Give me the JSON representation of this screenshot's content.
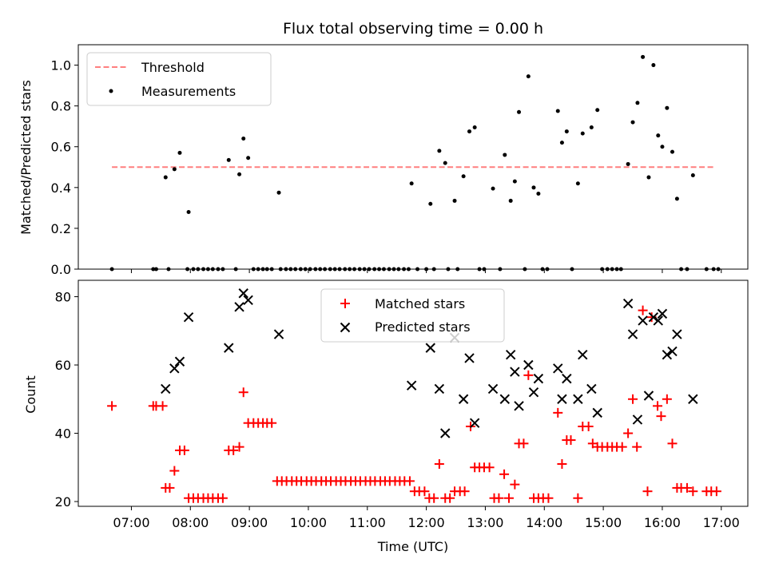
{
  "chart_data": [
    {
      "type": "scatter",
      "title": "Flux total observing time = 0.00 h",
      "xlabel": "",
      "ylabel": "Matched/Predicted stars",
      "xlim": [
        6.1,
        17.45
      ],
      "ylim": [
        0,
        1.1
      ],
      "yticks": [
        "0.0",
        "0.2",
        "0.4",
        "0.6",
        "0.8",
        "1.0"
      ],
      "legend": {
        "placement": "upper-left",
        "threshold_label": "Threshold",
        "measurements_label": "Measurements"
      },
      "threshold": {
        "name": "Threshold",
        "value": 0.5,
        "x_range": [
          6.67,
          16.87
        ],
        "color": "#ff7f7f",
        "style": "dashed"
      },
      "measurements": {
        "name": "Measurements",
        "color": "#000000",
        "points": [
          [
            6.67,
            0
          ],
          [
            7.37,
            0
          ],
          [
            7.42,
            0
          ],
          [
            7.58,
            0.45
          ],
          [
            7.63,
            0
          ],
          [
            7.73,
            0.49
          ],
          [
            7.82,
            0.57
          ],
          [
            7.97,
            0.28
          ],
          [
            7.95,
            0
          ],
          [
            8.05,
            0
          ],
          [
            8.13,
            0
          ],
          [
            8.22,
            0
          ],
          [
            8.3,
            0
          ],
          [
            8.38,
            0
          ],
          [
            8.47,
            0
          ],
          [
            8.55,
            0
          ],
          [
            8.65,
            0.535
          ],
          [
            8.77,
            0
          ],
          [
            8.83,
            0.465
          ],
          [
            8.9,
            0.64
          ],
          [
            8.98,
            0.545
          ],
          [
            9.07,
            0
          ],
          [
            9.15,
            0
          ],
          [
            9.23,
            0
          ],
          [
            9.3,
            0
          ],
          [
            9.38,
            0
          ],
          [
            9.5,
            0.375
          ],
          [
            9.53,
            0
          ],
          [
            9.62,
            0
          ],
          [
            9.7,
            0
          ],
          [
            9.78,
            0
          ],
          [
            9.87,
            0
          ],
          [
            9.95,
            0
          ],
          [
            10.03,
            0
          ],
          [
            10.12,
            0
          ],
          [
            10.2,
            0
          ],
          [
            10.28,
            0
          ],
          [
            10.37,
            0
          ],
          [
            10.45,
            0
          ],
          [
            10.53,
            0
          ],
          [
            10.62,
            0
          ],
          [
            10.7,
            0
          ],
          [
            10.78,
            0
          ],
          [
            10.87,
            0
          ],
          [
            10.95,
            0
          ],
          [
            11.03,
            0
          ],
          [
            11.12,
            0
          ],
          [
            11.2,
            0
          ],
          [
            11.28,
            0
          ],
          [
            11.37,
            0
          ],
          [
            11.45,
            0
          ],
          [
            11.53,
            0
          ],
          [
            11.62,
            0
          ],
          [
            11.7,
            0
          ],
          [
            11.75,
            0.42
          ],
          [
            11.85,
            0
          ],
          [
            12.0,
            0
          ],
          [
            12.07,
            0.32
          ],
          [
            12.13,
            0
          ],
          [
            12.22,
            0.58
          ],
          [
            12.32,
            0.52
          ],
          [
            12.37,
            0
          ],
          [
            12.48,
            0.335
          ],
          [
            12.53,
            0
          ],
          [
            12.63,
            0.455
          ],
          [
            12.73,
            0.675
          ],
          [
            12.82,
            0.695
          ],
          [
            12.9,
            0
          ],
          [
            12.98,
            0
          ],
          [
            13.13,
            0.395
          ],
          [
            13.25,
            0
          ],
          [
            13.33,
            0.56
          ],
          [
            13.43,
            0.335
          ],
          [
            13.5,
            0.43
          ],
          [
            13.57,
            0.77
          ],
          [
            13.67,
            0
          ],
          [
            13.73,
            0.945
          ],
          [
            13.82,
            0.4
          ],
          [
            13.9,
            0.37
          ],
          [
            13.97,
            0
          ],
          [
            14.05,
            0
          ],
          [
            14.23,
            0.775
          ],
          [
            14.3,
            0.62
          ],
          [
            14.38,
            0.675
          ],
          [
            14.47,
            0
          ],
          [
            14.57,
            0.42
          ],
          [
            14.65,
            0.665
          ],
          [
            14.8,
            0.695
          ],
          [
            14.9,
            0.78
          ],
          [
            14.98,
            0
          ],
          [
            15.07,
            0
          ],
          [
            15.15,
            0
          ],
          [
            15.23,
            0
          ],
          [
            15.3,
            0
          ],
          [
            15.42,
            0.515
          ],
          [
            15.5,
            0.72
          ],
          [
            15.58,
            0.815
          ],
          [
            15.67,
            1.04
          ],
          [
            15.77,
            0.45
          ],
          [
            15.85,
            1.0
          ],
          [
            15.93,
            0.655
          ],
          [
            16.0,
            0.6
          ],
          [
            16.08,
            0.79
          ],
          [
            16.17,
            0.575
          ],
          [
            16.25,
            0.345
          ],
          [
            16.32,
            0
          ],
          [
            16.42,
            0
          ],
          [
            16.52,
            0.46
          ],
          [
            16.75,
            0
          ],
          [
            16.87,
            0
          ],
          [
            16.95,
            0
          ]
        ]
      }
    },
    {
      "type": "scatter",
      "title": "",
      "xlabel": "Time (UTC)",
      "ylabel": "Count",
      "xlim": [
        6.1,
        17.45
      ],
      "ylim": [
        18.6,
        84.8
      ],
      "yticks": [
        "20",
        "40",
        "60",
        "80"
      ],
      "xticks": [
        {
          "v": 7,
          "label": "07:00"
        },
        {
          "v": 8,
          "label": "08:00"
        },
        {
          "v": 9,
          "label": "09:00"
        },
        {
          "v": 10,
          "label": "10:00"
        },
        {
          "v": 11,
          "label": "11:00"
        },
        {
          "v": 12,
          "label": "12:00"
        },
        {
          "v": 13,
          "label": "13:00"
        },
        {
          "v": 14,
          "label": "14:00"
        },
        {
          "v": 15,
          "label": "15:00"
        },
        {
          "v": 16,
          "label": "16:00"
        },
        {
          "v": 17,
          "label": "17:00"
        }
      ],
      "legend": {
        "placement": "upper-center"
      },
      "series": [
        {
          "name": "Matched stars",
          "marker": "plus",
          "color": "#ff0000",
          "points": [
            [
              6.67,
              48
            ],
            [
              7.37,
              48
            ],
            [
              7.42,
              48
            ],
            [
              7.53,
              48
            ],
            [
              7.58,
              24
            ],
            [
              7.65,
              24
            ],
            [
              7.73,
              29
            ],
            [
              7.82,
              35
            ],
            [
              7.9,
              35
            ],
            [
              7.97,
              21
            ],
            [
              8.05,
              21
            ],
            [
              8.13,
              21
            ],
            [
              8.22,
              21
            ],
            [
              8.3,
              21
            ],
            [
              8.38,
              21
            ],
            [
              8.47,
              21
            ],
            [
              8.55,
              21
            ],
            [
              8.65,
              35
            ],
            [
              8.73,
              35
            ],
            [
              8.83,
              36
            ],
            [
              8.9,
              52
            ],
            [
              8.98,
              43
            ],
            [
              9.07,
              43
            ],
            [
              9.15,
              43
            ],
            [
              9.23,
              43
            ],
            [
              9.3,
              43
            ],
            [
              9.38,
              43
            ],
            [
              9.47,
              26
            ],
            [
              9.55,
              26
            ],
            [
              9.63,
              26
            ],
            [
              9.72,
              26
            ],
            [
              9.8,
              26
            ],
            [
              9.88,
              26
            ],
            [
              9.97,
              26
            ],
            [
              10.05,
              26
            ],
            [
              10.13,
              26
            ],
            [
              10.22,
              26
            ],
            [
              10.3,
              26
            ],
            [
              10.38,
              26
            ],
            [
              10.47,
              26
            ],
            [
              10.55,
              26
            ],
            [
              10.63,
              26
            ],
            [
              10.72,
              26
            ],
            [
              10.8,
              26
            ],
            [
              10.88,
              26
            ],
            [
              10.97,
              26
            ],
            [
              11.05,
              26
            ],
            [
              11.13,
              26
            ],
            [
              11.22,
              26
            ],
            [
              11.3,
              26
            ],
            [
              11.38,
              26
            ],
            [
              11.47,
              26
            ],
            [
              11.55,
              26
            ],
            [
              11.63,
              26
            ],
            [
              11.72,
              26
            ],
            [
              11.8,
              23
            ],
            [
              11.88,
              23
            ],
            [
              11.97,
              23
            ],
            [
              12.05,
              21
            ],
            [
              12.13,
              21
            ],
            [
              12.22,
              31
            ],
            [
              12.32,
              21
            ],
            [
              12.4,
              21
            ],
            [
              12.48,
              23
            ],
            [
              12.57,
              23
            ],
            [
              12.65,
              23
            ],
            [
              12.75,
              42
            ],
            [
              12.82,
              30
            ],
            [
              12.9,
              30
            ],
            [
              12.98,
              30
            ],
            [
              13.07,
              30
            ],
            [
              13.15,
              21
            ],
            [
              13.23,
              21
            ],
            [
              13.32,
              28
            ],
            [
              13.4,
              21
            ],
            [
              13.5,
              25
            ],
            [
              13.57,
              37
            ],
            [
              13.65,
              37
            ],
            [
              13.73,
              57
            ],
            [
              13.82,
              21
            ],
            [
              13.9,
              21
            ],
            [
              13.98,
              21
            ],
            [
              14.07,
              21
            ],
            [
              14.23,
              46
            ],
            [
              14.3,
              31
            ],
            [
              14.38,
              38
            ],
            [
              14.45,
              38
            ],
            [
              14.57,
              21
            ],
            [
              14.65,
              42
            ],
            [
              14.75,
              42
            ],
            [
              14.82,
              37
            ],
            [
              14.9,
              36
            ],
            [
              14.98,
              36
            ],
            [
              15.07,
              36
            ],
            [
              15.15,
              36
            ],
            [
              15.23,
              36
            ],
            [
              15.32,
              36
            ],
            [
              15.42,
              40
            ],
            [
              15.5,
              50
            ],
            [
              15.57,
              36
            ],
            [
              15.67,
              76
            ],
            [
              15.75,
              23
            ],
            [
              15.82,
              74
            ],
            [
              15.92,
              48
            ],
            [
              15.98,
              45
            ],
            [
              16.08,
              50
            ],
            [
              16.17,
              37
            ],
            [
              16.25,
              24
            ],
            [
              16.32,
              24
            ],
            [
              16.42,
              24
            ],
            [
              16.52,
              23
            ],
            [
              16.75,
              23
            ],
            [
              16.83,
              23
            ],
            [
              16.92,
              23
            ]
          ]
        },
        {
          "name": "Predicted stars",
          "marker": "x",
          "color": "#000000",
          "points": [
            [
              7.58,
              53
            ],
            [
              7.73,
              59
            ],
            [
              7.82,
              61
            ],
            [
              7.97,
              74
            ],
            [
              8.65,
              65
            ],
            [
              8.83,
              77
            ],
            [
              8.9,
              81
            ],
            [
              8.98,
              79
            ],
            [
              9.5,
              69
            ],
            [
              11.75,
              54
            ],
            [
              12.07,
              65
            ],
            [
              12.22,
              53
            ],
            [
              12.32,
              40
            ],
            [
              12.48,
              68
            ],
            [
              12.63,
              50
            ],
            [
              12.73,
              62
            ],
            [
              12.82,
              43
            ],
            [
              13.13,
              53
            ],
            [
              13.33,
              50
            ],
            [
              13.43,
              63
            ],
            [
              13.5,
              58
            ],
            [
              13.57,
              48
            ],
            [
              13.73,
              60
            ],
            [
              13.82,
              52
            ],
            [
              13.9,
              56
            ],
            [
              14.23,
              59
            ],
            [
              14.3,
              50
            ],
            [
              14.38,
              56
            ],
            [
              14.57,
              50
            ],
            [
              14.65,
              63
            ],
            [
              14.8,
              53
            ],
            [
              14.9,
              46
            ],
            [
              15.42,
              78
            ],
            [
              15.5,
              69
            ],
            [
              15.58,
              44
            ],
            [
              15.67,
              73
            ],
            [
              15.77,
              51
            ],
            [
              15.85,
              74
            ],
            [
              15.93,
              73
            ],
            [
              16.0,
              75
            ],
            [
              16.08,
              63
            ],
            [
              16.17,
              64
            ],
            [
              16.25,
              69
            ],
            [
              16.52,
              50
            ]
          ]
        }
      ]
    }
  ]
}
